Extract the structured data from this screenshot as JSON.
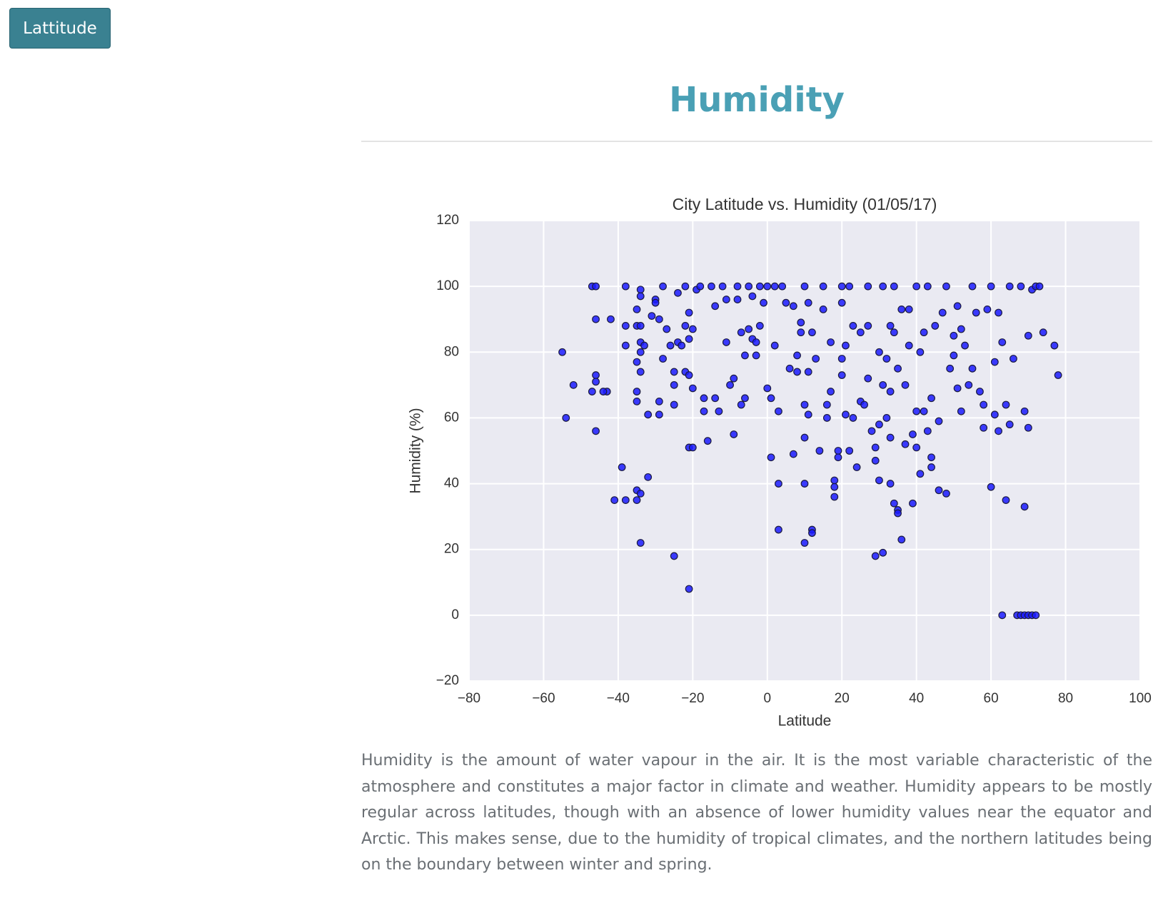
{
  "button": {
    "label": "Lattitude"
  },
  "header": {
    "title": "Humidity"
  },
  "chart_data": {
    "type": "scatter",
    "title": "City Latitude vs. Humidity (01/05/17)",
    "x_label": "Latitude",
    "y_label": "Humidity (%)",
    "color": "#1a1aff",
    "edge_color": "#1a1a40",
    "grid": true,
    "xlim": [
      -80,
      100
    ],
    "ylim": [
      -20,
      120
    ],
    "xticks": [
      {
        "value": -80,
        "label": "−80"
      },
      {
        "value": -60,
        "label": "−60"
      },
      {
        "value": -40,
        "label": "−40"
      },
      {
        "value": -20,
        "label": "−20"
      },
      0,
      20,
      40,
      60,
      80,
      100
    ],
    "yticks": [
      {
        "value": -20,
        "label": "−20"
      },
      0,
      20,
      40,
      60,
      80,
      100,
      120
    ],
    "x": [
      -55,
      -54,
      -52,
      -47,
      -46,
      -46,
      -46,
      -46,
      -47,
      -46,
      -43,
      -44,
      -42,
      -41,
      -39,
      -38,
      -38,
      -38,
      -38,
      -35,
      -35,
      -34,
      -34,
      -35,
      -34,
      -35,
      -35,
      -35,
      -35,
      -34,
      -34,
      -34,
      -34,
      -34,
      -33,
      -32,
      -32,
      -31,
      -30,
      -30,
      -29,
      -29,
      -29,
      -28,
      -28,
      -27,
      -26,
      -25,
      -25,
      -25,
      -25,
      -24,
      -24,
      -23,
      -22,
      -22,
      -22,
      -21,
      -21,
      -20,
      -21,
      -20,
      -21,
      -20,
      -21,
      -19,
      -18,
      -17,
      -17,
      -16,
      -15,
      -14,
      -14,
      -13,
      -12,
      -11,
      -11,
      -10,
      -9,
      -9,
      -8,
      -8,
      -7,
      -7,
      -6,
      -6,
      -5,
      -5,
      -4,
      -4,
      -3,
      -3,
      -2,
      -2,
      -1,
      0,
      0,
      1,
      1,
      2,
      2,
      3,
      3,
      3,
      4,
      5,
      6,
      7,
      7,
      8,
      8,
      9,
      9,
      10,
      10,
      10,
      10,
      10,
      11,
      11,
      11,
      12,
      12,
      12,
      13,
      14,
      15,
      15,
      16,
      16,
      17,
      17,
      18,
      18,
      18,
      19,
      19,
      20,
      20,
      20,
      20,
      21,
      21,
      22,
      22,
      23,
      23,
      24,
      25,
      25,
      26,
      27,
      27,
      27,
      28,
      29,
      29,
      29,
      30,
      30,
      30,
      31,
      31,
      31,
      32,
      32,
      33,
      33,
      33,
      33,
      34,
      34,
      34,
      35,
      35,
      35,
      36,
      36,
      37,
      37,
      38,
      38,
      39,
      39,
      40,
      40,
      40,
      41,
      41,
      42,
      42,
      43,
      43,
      44,
      44,
      44,
      45,
      46,
      46,
      47,
      48,
      48,
      49,
      50,
      50,
      51,
      51,
      52,
      52,
      53,
      54,
      55,
      55,
      56,
      57,
      58,
      58,
      59,
      60,
      60,
      61,
      61,
      62,
      62,
      63,
      63,
      64,
      64,
      65,
      65,
      66,
      67,
      68,
      68,
      69,
      69,
      69,
      70,
      70,
      70,
      71,
      71,
      72,
      72,
      73,
      74,
      77,
      78
    ],
    "values": [
      80,
      60,
      70,
      100,
      100,
      90,
      73,
      71,
      68,
      56,
      68,
      68,
      90,
      35,
      45,
      88,
      82,
      100,
      35,
      35,
      38,
      37,
      22,
      88,
      88,
      77,
      68,
      65,
      93,
      99,
      97,
      83,
      80,
      74,
      82,
      61,
      42,
      91,
      96,
      95,
      90,
      65,
      61,
      100,
      78,
      87,
      82,
      64,
      74,
      70,
      18,
      98,
      83,
      82,
      100,
      88,
      74,
      92,
      84,
      87,
      73,
      69,
      51,
      51,
      8,
      99,
      100,
      66,
      62,
      53,
      100,
      94,
      66,
      62,
      100,
      96,
      83,
      70,
      72,
      55,
      100,
      96,
      86,
      64,
      66,
      79,
      100,
      87,
      97,
      84,
      83,
      79,
      100,
      88,
      95,
      69,
      100,
      48,
      66,
      82,
      100,
      62,
      40,
      26,
      100,
      95,
      75,
      94,
      49,
      74,
      79,
      86,
      89,
      100,
      64,
      54,
      40,
      22,
      74,
      61,
      95,
      86,
      26,
      25,
      78,
      50,
      100,
      93,
      64,
      60,
      83,
      68,
      41,
      39,
      36,
      50,
      48,
      100,
      95,
      78,
      73,
      82,
      61,
      50,
      100,
      88,
      60,
      45,
      86,
      65,
      64,
      100,
      88,
      72,
      56,
      47,
      51,
      18,
      41,
      58,
      80,
      70,
      100,
      19,
      78,
      60,
      54,
      88,
      68,
      40,
      34,
      100,
      86,
      32,
      31,
      75,
      23,
      93,
      52,
      70,
      82,
      93,
      34,
      55,
      100,
      62,
      51,
      80,
      43,
      62,
      86,
      56,
      100,
      45,
      48,
      66,
      88,
      38,
      59,
      92,
      37,
      100,
      75,
      85,
      79,
      94,
      69,
      62,
      87,
      82,
      70,
      100,
      75,
      92,
      68,
      64,
      57,
      93,
      39,
      100,
      61,
      77,
      56,
      92,
      0,
      83,
      35,
      64,
      58,
      100,
      78,
      0,
      0,
      100,
      0,
      62,
      33,
      0,
      85,
      57,
      0,
      99,
      0,
      100,
      100,
      86,
      82,
      73
    ]
  },
  "paragraph": "Humidity is the amount of water vapour in the air. It is the most variable characteristic of the atmosphere and constitutes a major factor in climate and weather. Humidity appears to be mostly regular across latitudes, though with an absence of lower humidity values near the equator and Arctic. This makes sense, due to the humidity of tropical climates, and the northern latitudes being on the boundary between winter and spring."
}
